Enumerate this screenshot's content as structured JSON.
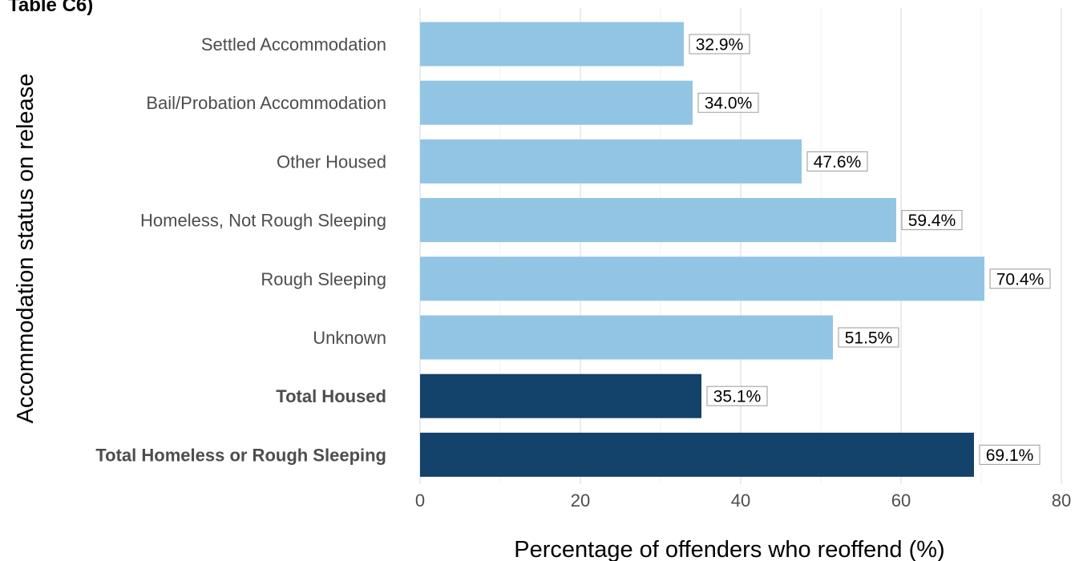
{
  "header_fragment": "Table C6)",
  "chart_data": {
    "type": "bar",
    "orientation": "horizontal",
    "xlabel": "Percentage of offenders who reoffend (%)",
    "ylabel": "Accommodation status on release",
    "xlim": [
      0,
      80
    ],
    "x_ticks": [
      0,
      20,
      40,
      60,
      80
    ],
    "grid": "vertical",
    "categories": [
      "Settled Accommodation",
      "Bail/Probation Accommodation",
      "Other Housed",
      "Homeless, Not Rough Sleeping",
      "Rough Sleeping",
      "Unknown",
      "Total Housed",
      "Total Homeless or Rough Sleeping"
    ],
    "values": [
      32.9,
      34.0,
      47.6,
      59.4,
      70.4,
      51.5,
      35.1,
      69.1
    ],
    "data_labels": [
      "32.9%",
      "34.0%",
      "47.6%",
      "59.4%",
      "70.4%",
      "51.5%",
      "35.1%",
      "69.1%"
    ],
    "bold_categories": [
      false,
      false,
      false,
      false,
      false,
      false,
      true,
      true
    ],
    "bar_colors": [
      "#92c5e4",
      "#92c5e4",
      "#92c5e4",
      "#92c5e4",
      "#92c5e4",
      "#92c5e4",
      "#13426b",
      "#13426b"
    ],
    "colors": {
      "light_bar": "#92c5e4",
      "dark_bar": "#13426b",
      "grid": "#e6e6e6",
      "label_text": "#4d4d4d"
    }
  }
}
